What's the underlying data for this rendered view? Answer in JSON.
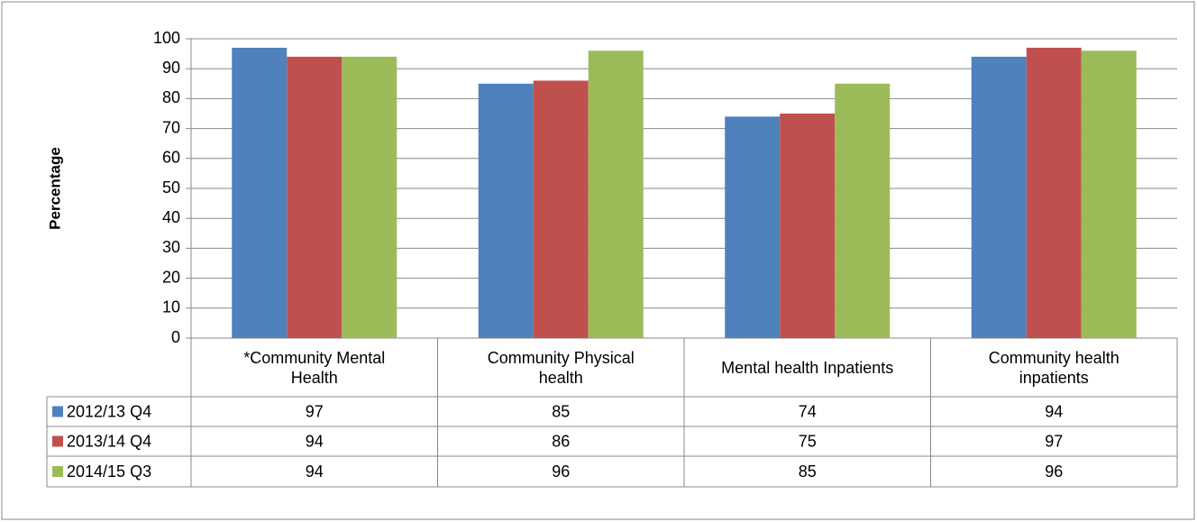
{
  "chart_data": {
    "type": "bar",
    "y_label": "Percentage",
    "categories": [
      "*Community Mental Health",
      "Community Physical health",
      "Mental health Inpatients",
      "Community health inpatients"
    ],
    "series": [
      {
        "name": "2012/13 Q4",
        "color": "#4f81bd",
        "values": [
          97,
          85,
          74,
          94
        ]
      },
      {
        "name": "2013/14 Q4",
        "color": "#c0504d",
        "values": [
          94,
          86,
          75,
          97
        ]
      },
      {
        "name": "2014/15 Q3",
        "color": "#9bbb59",
        "values": [
          94,
          96,
          85,
          96
        ]
      }
    ],
    "ylim": [
      0,
      100
    ],
    "yticks": [
      0,
      10,
      20,
      30,
      40,
      50,
      60,
      70,
      80,
      90,
      100
    ],
    "grid": true
  }
}
